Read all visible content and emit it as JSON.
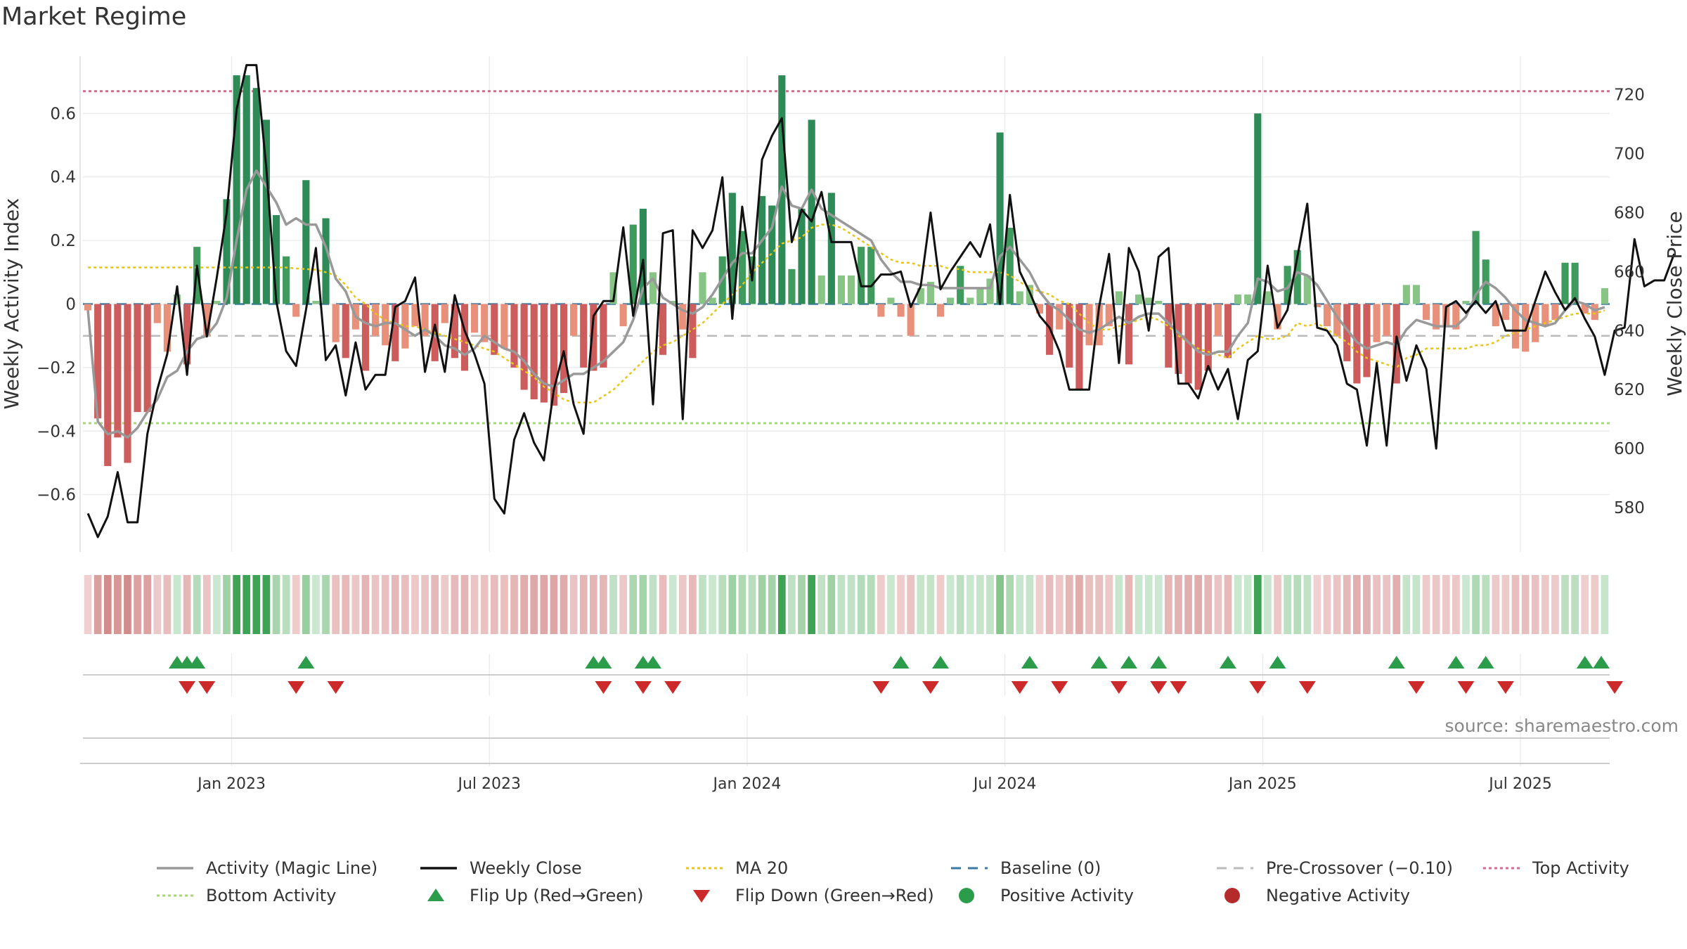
{
  "title": "Market Regime",
  "source": "source: sharemaestro.com",
  "chart_data": {
    "type": "bar",
    "title": "Market Regime",
    "xlabel": "",
    "ylabel": "Weekly Activity Index",
    "y2label": "Weekly Close Price",
    "ylim": [
      -0.78,
      0.78
    ],
    "y2lim": [
      565,
      733
    ],
    "yticks": [
      0.6,
      0.4,
      0.2,
      0,
      -0.2,
      -0.4,
      -0.6
    ],
    "ytick_labels": [
      "0.6",
      "0.4",
      "0.2",
      "0",
      "−0.2",
      "−0.4",
      "−0.6"
    ],
    "y2ticks": [
      720,
      700,
      680,
      660,
      640,
      620,
      600,
      580
    ],
    "y2tick_labels": [
      "720",
      "700",
      "680",
      "660",
      "640",
      "620",
      "600",
      "580"
    ],
    "xticks": [
      {
        "label": "Jan 2023",
        "week": 15
      },
      {
        "label": "Jul 2023",
        "week": 41
      },
      {
        "label": "Jan 2024",
        "week": 67
      },
      {
        "label": "Jul 2024",
        "week": 93
      },
      {
        "label": "Jan 2025",
        "week": 119
      },
      {
        "label": "Jul 2025",
        "week": 145
      }
    ],
    "grid": true,
    "legend_position": "bottom",
    "reference_lines": {
      "top_activity": 0.67,
      "bottom_activity": -0.375,
      "pre_crossover": -0.1,
      "baseline": 0,
      "ma20_start": 0.115
    },
    "activity_index": [
      -0.02,
      -0.36,
      -0.51,
      -0.42,
      -0.5,
      -0.34,
      -0.34,
      -0.06,
      -0.15,
      0.03,
      -0.19,
      0.18,
      -0.1,
      0.01,
      0.33,
      0.72,
      0.72,
      0.68,
      0.58,
      0.28,
      0.15,
      -0.04,
      0.39,
      0.01,
      0.27,
      -0.12,
      -0.17,
      -0.08,
      -0.21,
      -0.1,
      -0.13,
      -0.18,
      -0.14,
      -0.07,
      -0.1,
      -0.18,
      -0.06,
      -0.17,
      -0.21,
      -0.09,
      -0.12,
      -0.16,
      -0.14,
      -0.2,
      -0.27,
      -0.3,
      -0.31,
      -0.32,
      -0.28,
      -0.1,
      -0.2,
      -0.21,
      -0.2,
      0.1,
      -0.07,
      0.25,
      0.3,
      0.1,
      -0.16,
      0.01,
      -0.08,
      -0.17,
      0.1,
      0.02,
      0.15,
      0.35,
      0.23,
      0.15,
      0.34,
      0.31,
      0.72,
      0.11,
      0.3,
      0.58,
      0.09,
      0.35,
      0.09,
      0.09,
      0.18,
      0.18,
      -0.04,
      0.02,
      -0.04,
      -0.1,
      0.05,
      0.07,
      -0.04,
      0.02,
      0.12,
      0.02,
      0.05,
      0.08,
      0.54,
      0.24,
      0.04,
      0.06,
      -0.03,
      -0.16,
      -0.08,
      -0.2,
      -0.27,
      -0.13,
      -0.13,
      -0.07,
      0.04,
      -0.19,
      0.03,
      0.02,
      0.01,
      -0.2,
      -0.22,
      -0.25,
      -0.27,
      -0.21,
      -0.1,
      -0.17,
      0.03,
      0.03,
      0.6,
      0.04,
      -0.08,
      0.12,
      0.17,
      0.09,
      -0.01,
      -0.07,
      -0.1,
      -0.18,
      -0.25,
      -0.23,
      -0.12,
      -0.1,
      -0.25,
      0.06,
      0.06,
      -0.05,
      -0.08,
      -0.07,
      -0.08,
      0.01,
      0.23,
      0.14,
      -0.07,
      -0.05,
      -0.14,
      -0.15,
      -0.12,
      -0.07,
      -0.05,
      0.13,
      0.13,
      -0.03,
      -0.05,
      0.05
    ],
    "magic_line": [
      -0.02,
      -0.37,
      -0.41,
      -0.4,
      -0.42,
      -0.39,
      -0.34,
      -0.3,
      -0.23,
      -0.21,
      -0.15,
      -0.11,
      -0.1,
      -0.06,
      0.02,
      0.2,
      0.36,
      0.42,
      0.37,
      0.32,
      0.25,
      0.27,
      0.25,
      0.25,
      0.18,
      0.08,
      0.04,
      -0.04,
      -0.06,
      -0.07,
      -0.06,
      -0.06,
      -0.08,
      -0.1,
      -0.08,
      -0.1,
      -0.13,
      -0.14,
      -0.16,
      -0.14,
      -0.1,
      -0.12,
      -0.14,
      -0.15,
      -0.18,
      -0.22,
      -0.25,
      -0.26,
      -0.24,
      -0.22,
      -0.22,
      -0.2,
      -0.18,
      -0.15,
      -0.12,
      -0.05,
      0.05,
      0.08,
      0.02,
      0.0,
      -0.02,
      -0.03,
      -0.01,
      0.03,
      0.08,
      0.13,
      0.16,
      0.16,
      0.2,
      0.24,
      0.37,
      0.31,
      0.3,
      0.36,
      0.3,
      0.28,
      0.26,
      0.24,
      0.22,
      0.2,
      0.14,
      0.1,
      0.07,
      0.07,
      0.06,
      0.06,
      0.05,
      0.05,
      0.05,
      0.05,
      0.05,
      0.05,
      0.15,
      0.18,
      0.14,
      0.1,
      0.04,
      0.0,
      -0.02,
      -0.05,
      -0.08,
      -0.09,
      -0.08,
      -0.06,
      -0.04,
      -0.06,
      -0.04,
      -0.03,
      -0.03,
      -0.06,
      -0.09,
      -0.12,
      -0.15,
      -0.16,
      -0.15,
      -0.15,
      -0.1,
      -0.06,
      0.08,
      0.07,
      0.04,
      0.05,
      0.1,
      0.09,
      0.06,
      0.01,
      -0.04,
      -0.08,
      -0.12,
      -0.14,
      -0.13,
      -0.12,
      -0.13,
      -0.08,
      -0.05,
      -0.06,
      -0.07,
      -0.07,
      -0.07,
      -0.04,
      0.03,
      0.07,
      0.05,
      0.02,
      -0.02,
      -0.05,
      -0.06,
      -0.07,
      -0.06,
      -0.02,
      0.01,
      0.0,
      -0.02,
      -0.01
    ],
    "ma20": [
      0.115,
      0.115,
      0.115,
      0.115,
      0.115,
      0.115,
      0.115,
      0.115,
      0.115,
      0.115,
      0.115,
      0.115,
      0.115,
      0.115,
      0.115,
      0.115,
      0.115,
      0.115,
      0.115,
      0.115,
      0.115,
      0.112,
      0.11,
      0.108,
      0.1,
      0.09,
      0.06,
      0.02,
      0.0,
      -0.03,
      -0.05,
      -0.06,
      -0.07,
      -0.07,
      -0.08,
      -0.09,
      -0.1,
      -0.11,
      -0.12,
      -0.13,
      -0.14,
      -0.15,
      -0.17,
      -0.19,
      -0.21,
      -0.23,
      -0.26,
      -0.28,
      -0.3,
      -0.31,
      -0.31,
      -0.31,
      -0.29,
      -0.27,
      -0.24,
      -0.21,
      -0.18,
      -0.15,
      -0.13,
      -0.12,
      -0.1,
      -0.08,
      -0.06,
      -0.03,
      0.0,
      0.03,
      0.06,
      0.1,
      0.13,
      0.16,
      0.19,
      0.2,
      0.21,
      0.24,
      0.25,
      0.25,
      0.24,
      0.22,
      0.2,
      0.18,
      0.16,
      0.14,
      0.13,
      0.13,
      0.12,
      0.12,
      0.12,
      0.11,
      0.11,
      0.1,
      0.1,
      0.1,
      0.1,
      0.09,
      0.07,
      0.05,
      0.04,
      0.03,
      0.01,
      0.0,
      -0.03,
      -0.06,
      -0.08,
      -0.08,
      -0.07,
      -0.06,
      -0.05,
      -0.04,
      -0.05,
      -0.07,
      -0.1,
      -0.12,
      -0.14,
      -0.15,
      -0.16,
      -0.17,
      -0.14,
      -0.12,
      -0.1,
      -0.11,
      -0.11,
      -0.1,
      -0.06,
      -0.07,
      -0.06,
      -0.08,
      -0.1,
      -0.12,
      -0.15,
      -0.17,
      -0.18,
      -0.19,
      -0.2,
      -0.17,
      -0.16,
      -0.14,
      -0.14,
      -0.14,
      -0.14,
      -0.14,
      -0.13,
      -0.13,
      -0.12,
      -0.1,
      -0.09,
      -0.08,
      -0.07,
      -0.06,
      -0.05,
      -0.04,
      -0.03,
      -0.03,
      -0.03,
      -0.02
    ],
    "weekly_close": [
      578,
      570,
      577,
      592,
      575,
      575,
      605,
      620,
      632,
      655,
      625,
      662,
      638,
      658,
      680,
      715,
      730,
      730,
      695,
      650,
      633,
      628,
      647,
      668,
      630,
      635,
      618,
      636,
      620,
      625,
      625,
      648,
      650,
      658,
      626,
      642,
      626,
      652,
      640,
      632,
      622,
      583,
      578,
      603,
      612,
      602,
      596,
      620,
      633,
      615,
      605,
      645,
      650,
      650,
      675,
      645,
      664,
      615,
      673,
      674,
      610,
      674,
      668,
      674,
      692,
      644,
      682,
      657,
      698,
      706,
      712,
      670,
      681,
      677,
      687,
      670,
      670,
      670,
      655,
      655,
      659,
      659,
      660,
      648,
      655,
      680,
      654,
      660,
      665,
      670,
      665,
      676,
      649,
      686,
      660,
      653,
      645,
      641,
      633,
      620,
      620,
      620,
      648,
      666,
      629,
      668,
      660,
      640,
      665,
      668,
      622,
      622,
      617,
      628,
      620,
      627,
      610,
      630,
      633,
      662,
      641,
      647,
      665,
      683,
      641,
      640,
      635,
      622,
      620,
      601,
      629,
      601,
      638,
      623,
      635,
      627,
      600,
      648,
      650,
      646,
      650,
      646,
      650,
      640,
      640,
      640,
      650,
      660,
      653,
      647,
      651,
      644,
      638,
      625,
      640,
      641,
      671,
      655,
      657,
      657,
      666
    ],
    "flip_up_weeks": [
      9,
      10,
      11,
      22,
      51,
      52,
      56,
      57,
      82,
      86,
      95,
      102,
      105,
      108,
      115,
      120,
      132,
      138,
      141,
      151,
      155
    ],
    "flip_down_weeks": [
      10,
      12,
      21,
      25,
      52,
      56,
      59,
      80,
      85,
      94,
      98,
      104,
      108,
      110,
      118,
      123,
      134,
      139,
      143,
      154
    ],
    "series": [
      {
        "name": "Activity (Magic Line)",
        "color": "#999999",
        "style": "solid"
      },
      {
        "name": "Weekly Close",
        "color": "#111111",
        "style": "solid"
      },
      {
        "name": "MA 20",
        "color": "#e6c619",
        "style": "dotted"
      },
      {
        "name": "Baseline (0)",
        "color": "#3a78a8",
        "style": "dashed"
      },
      {
        "name": "Pre-Crossover (−0.10)",
        "color": "#bbbbbb",
        "style": "dashed"
      },
      {
        "name": "Top Activity",
        "color": "#d86a8c",
        "style": "dotted"
      },
      {
        "name": "Bottom Activity",
        "color": "#a8d87a",
        "style": "dotted"
      },
      {
        "name": "Flip Up (Red→Green)",
        "color": "#2a9c4a",
        "marker": "triangle-up"
      },
      {
        "name": "Flip Down (Green→Red)",
        "color": "#cc2a2a",
        "marker": "triangle-down"
      },
      {
        "name": "Positive Activity",
        "color": "#2a9c4a",
        "marker": "circle"
      },
      {
        "name": "Negative Activity",
        "color": "#b52a2a",
        "marker": "circle"
      }
    ]
  }
}
